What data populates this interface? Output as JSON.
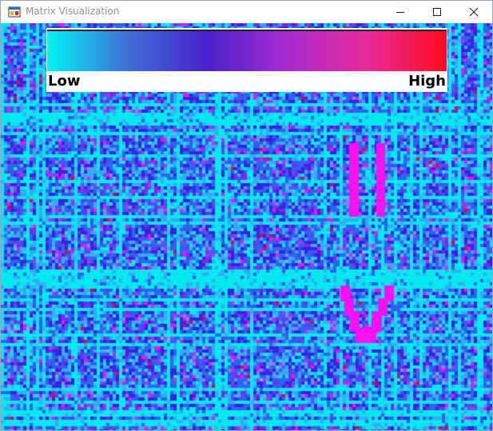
{
  "window": {
    "title": "Matrix Visualization",
    "icon": "winforms-app-icon",
    "controls": [
      "minimize-icon",
      "maximize-icon",
      "close-icon"
    ]
  },
  "legend": {
    "low_label": "Low",
    "high_label": "High",
    "colors": [
      "#00f4f4",
      "#3f6fd6",
      "#4a22cc",
      "#a62bd0",
      "#e62a9a",
      "#ff0a1e"
    ]
  },
  "matrix": {
    "palette": {
      "cyan": "#00e8f0",
      "light_blue": "#3aa8f4",
      "blue": "#2f63ee",
      "indigo": "#3b22e0",
      "violet": "#7a2af0",
      "magenta": "#ff10f0",
      "red": "#e6003c"
    },
    "overlay_color": "#ff10f0"
  }
}
